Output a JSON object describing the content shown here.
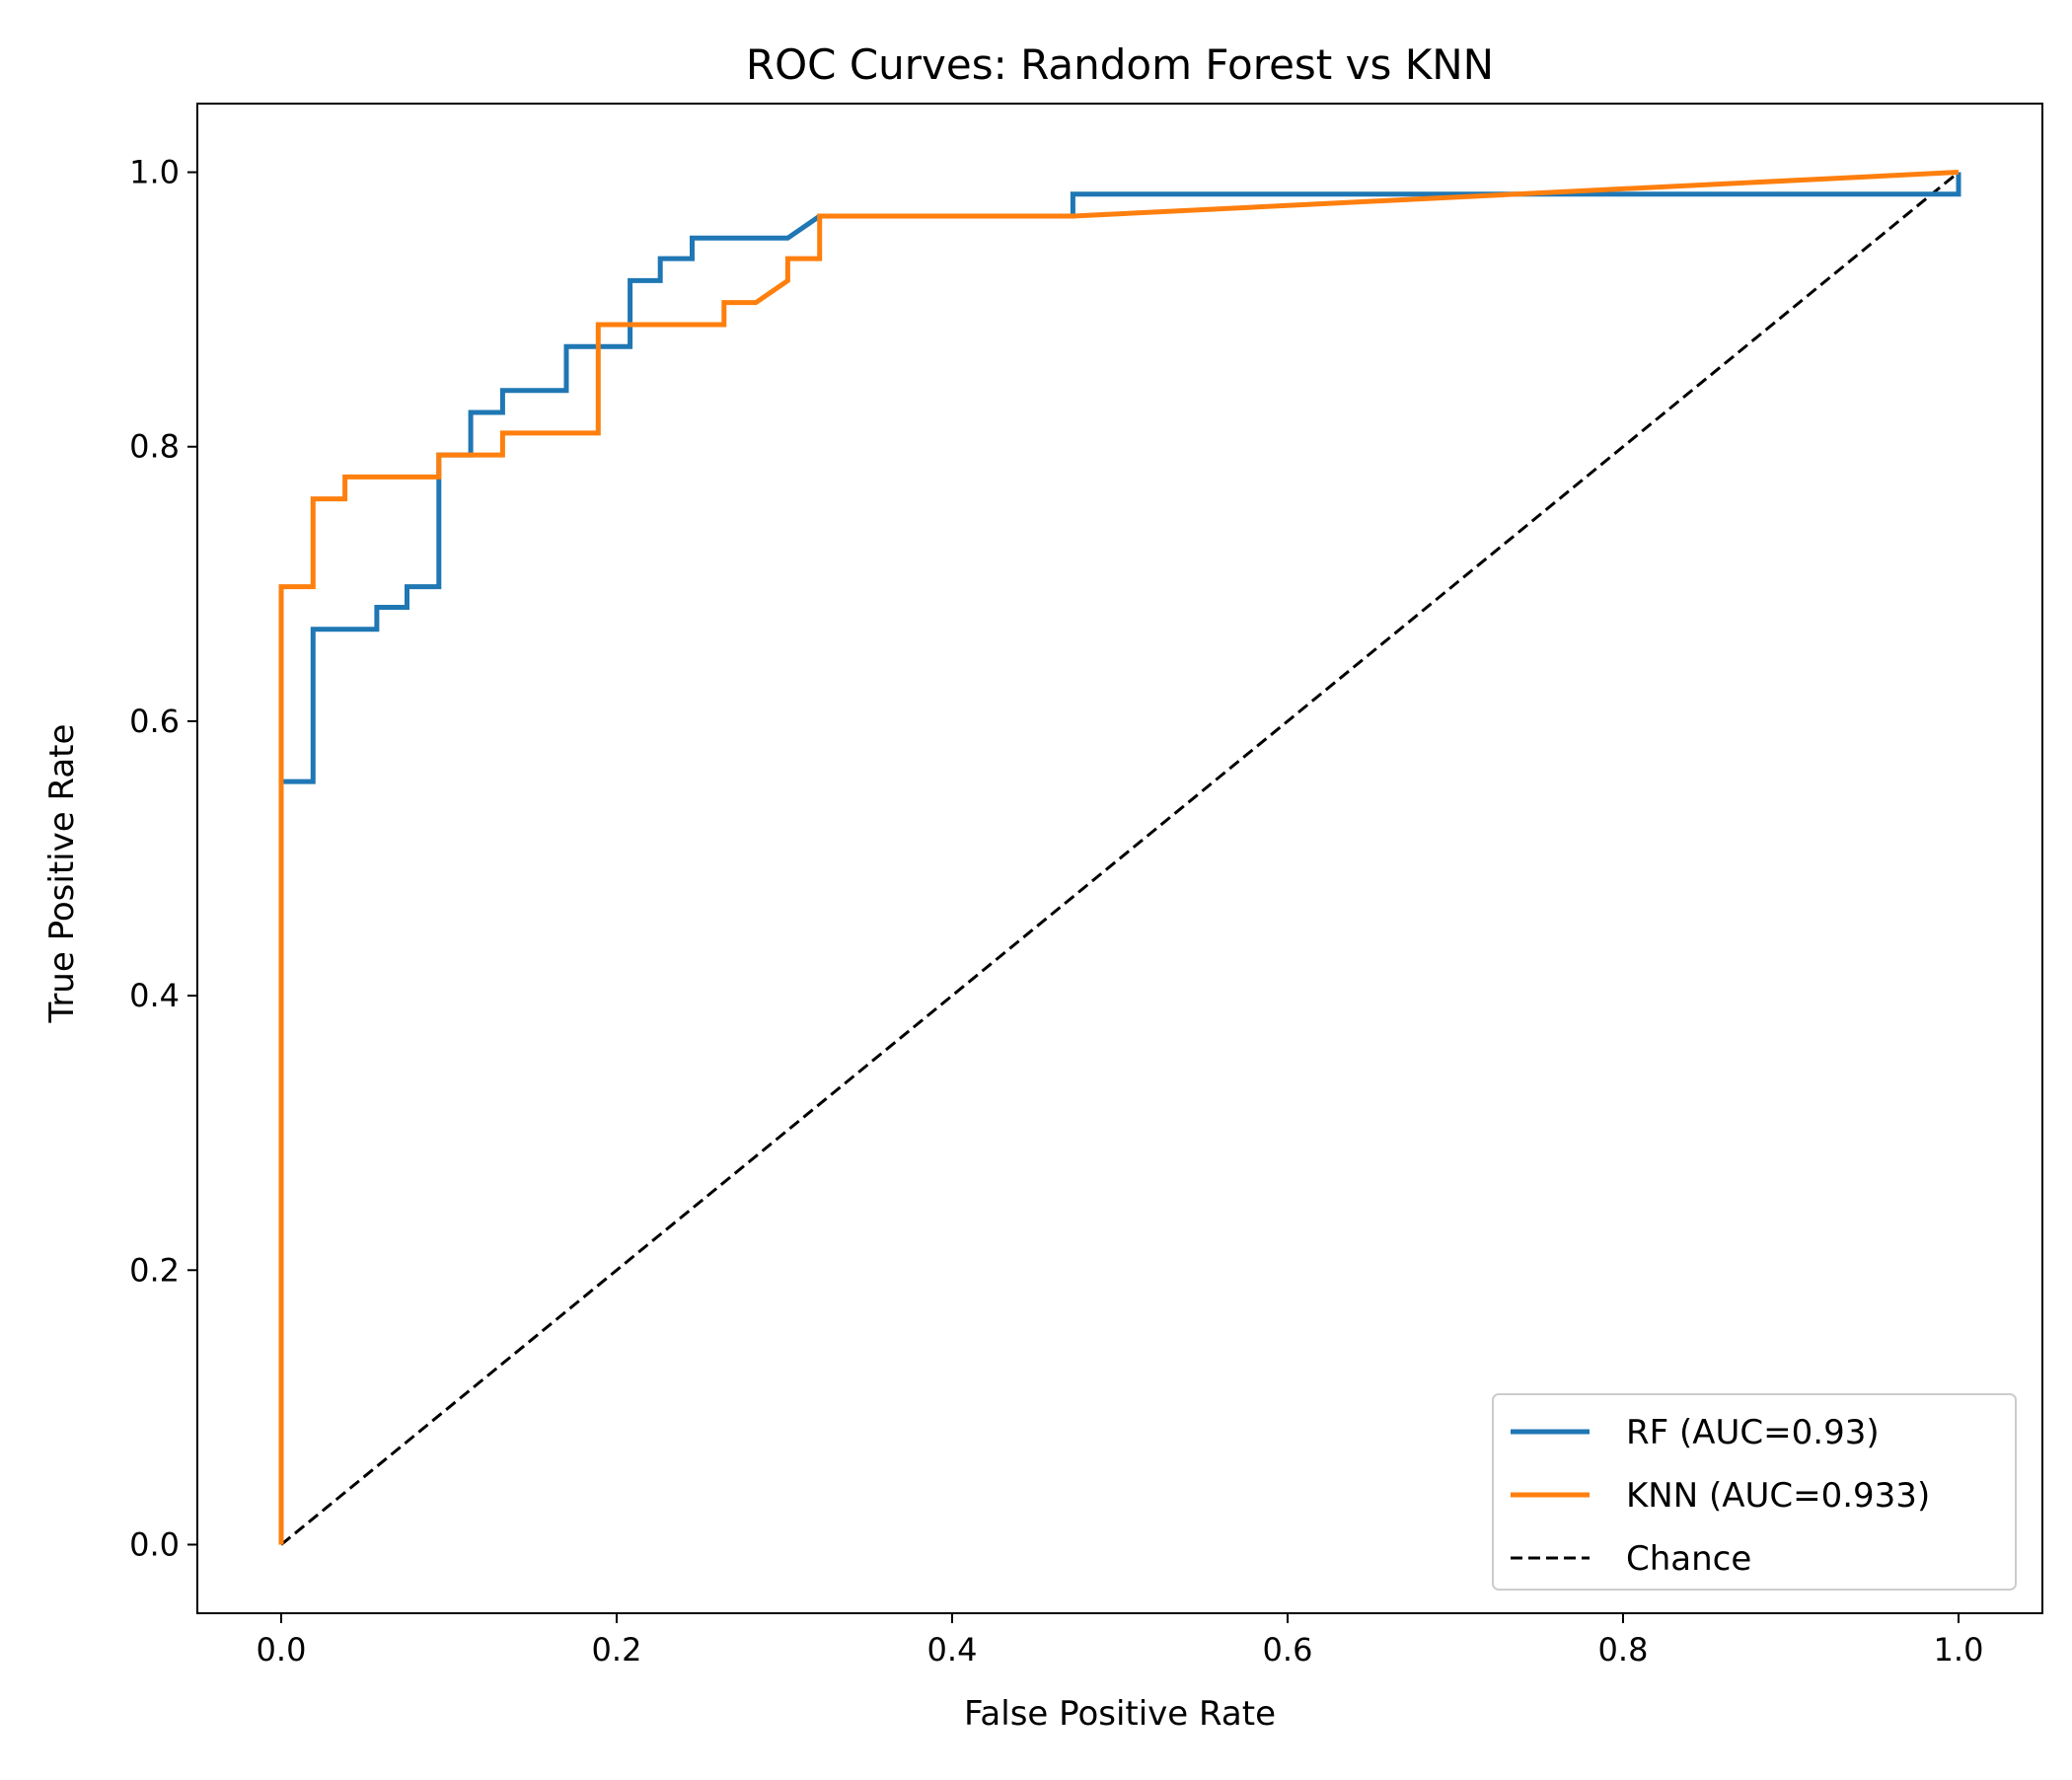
{
  "chart_data": {
    "type": "line",
    "title": "ROC Curves: Random Forest vs KNN",
    "xlabel": "False Positive Rate",
    "ylabel": "True Positive Rate",
    "xlim": [
      -0.05,
      1.05
    ],
    "ylim": [
      -0.05,
      1.05
    ],
    "x_ticks": [
      0.0,
      0.2,
      0.4,
      0.6,
      0.8,
      1.0
    ],
    "x_tick_labels": [
      "0.0",
      "0.2",
      "0.4",
      "0.6",
      "0.8",
      "1.0"
    ],
    "y_ticks": [
      0.0,
      0.2,
      0.4,
      0.6,
      0.8,
      1.0
    ],
    "y_tick_labels": [
      "0.0",
      "0.2",
      "0.4",
      "0.6",
      "0.8",
      "1.0"
    ],
    "grid": false,
    "legend_position": "bottom-right",
    "series": [
      {
        "name": "RF (AUC=0.93)",
        "color": "#1f77b4",
        "linestyle": "solid",
        "x": [
          0.0,
          0.0,
          0.019,
          0.019,
          0.057,
          0.057,
          0.075,
          0.075,
          0.094,
          0.094,
          0.113,
          0.113,
          0.132,
          0.132,
          0.17,
          0.17,
          0.208,
          0.208,
          0.226,
          0.226,
          0.245,
          0.245,
          0.302,
          0.321,
          0.472,
          0.472,
          1.0,
          1.0
        ],
        "y": [
          0.0,
          0.556,
          0.556,
          0.667,
          0.667,
          0.683,
          0.683,
          0.698,
          0.698,
          0.794,
          0.794,
          0.825,
          0.825,
          0.841,
          0.841,
          0.873,
          0.873,
          0.921,
          0.921,
          0.937,
          0.937,
          0.952,
          0.952,
          0.968,
          0.968,
          0.984,
          0.984,
          1.0
        ]
      },
      {
        "name": "KNN (AUC=0.933)",
        "color": "#ff7f0e",
        "linestyle": "solid",
        "x": [
          0.0,
          0.0,
          0.019,
          0.019,
          0.038,
          0.038,
          0.094,
          0.094,
          0.132,
          0.132,
          0.189,
          0.189,
          0.264,
          0.264,
          0.283,
          0.302,
          0.302,
          0.321,
          0.321,
          0.472,
          1.0
        ],
        "y": [
          0.0,
          0.698,
          0.698,
          0.762,
          0.762,
          0.778,
          0.778,
          0.794,
          0.794,
          0.81,
          0.81,
          0.889,
          0.889,
          0.905,
          0.905,
          0.921,
          0.937,
          0.937,
          0.968,
          0.968,
          1.0
        ]
      },
      {
        "name": "Chance",
        "color": "#000000",
        "linestyle": "dashed",
        "x": [
          0.0,
          1.0
        ],
        "y": [
          0.0,
          1.0
        ]
      }
    ]
  }
}
